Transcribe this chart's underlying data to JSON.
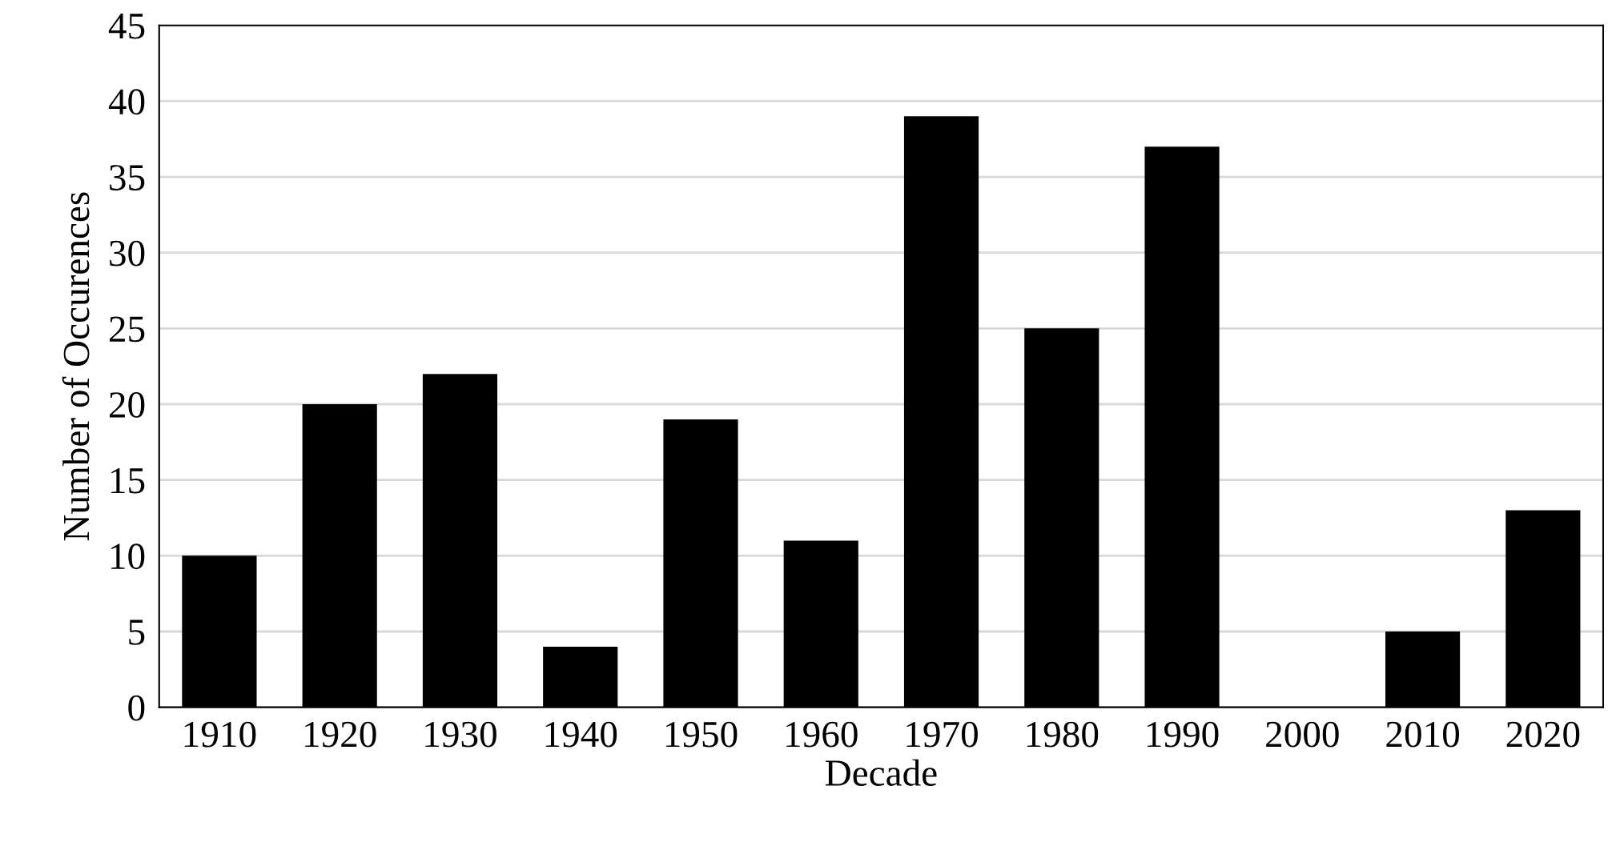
{
  "chart_data": {
    "type": "bar",
    "xlabel": "Decade",
    "ylabel": "Number of Occurences",
    "categories": [
      "1910",
      "1920",
      "1930",
      "1940",
      "1950",
      "1960",
      "1970",
      "1980",
      "1990",
      "2000",
      "2010",
      "2020"
    ],
    "values": [
      10,
      20,
      22,
      4,
      19,
      11,
      39,
      25,
      37,
      0,
      5,
      13
    ],
    "color": "#000000",
    "ylim": [
      0,
      45
    ],
    "yticks": [
      0,
      5,
      10,
      15,
      20,
      25,
      30,
      35,
      40,
      45
    ],
    "grid": "y",
    "legend": false
  }
}
